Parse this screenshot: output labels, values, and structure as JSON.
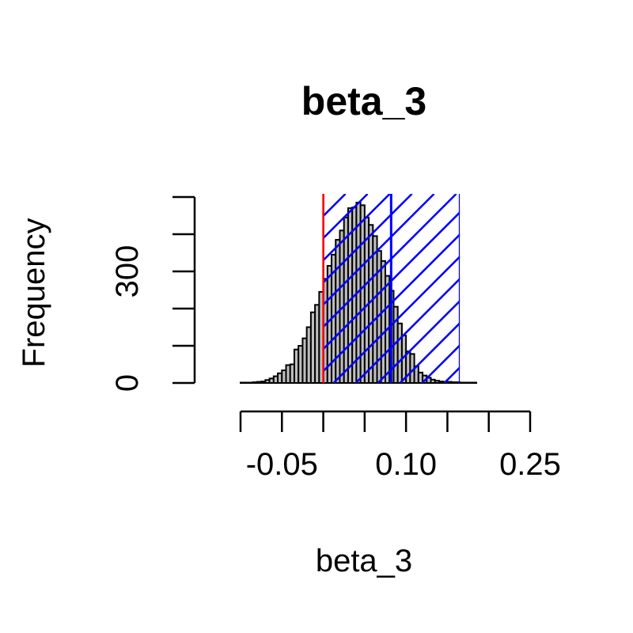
{
  "chart_data": {
    "type": "bar",
    "title": "beta_3",
    "xlabel": "beta_3",
    "ylabel": "Frequency",
    "bin_width": 0.005,
    "bin_start": -0.1,
    "x_ticks": [
      -0.1,
      -0.05,
      0.0,
      0.05,
      0.1,
      0.15,
      0.2,
      0.25
    ],
    "x_tick_labels": [
      "",
      "-0.05",
      "",
      "",
      "0.10",
      "",
      "",
      "0.25"
    ],
    "y_ticks": [
      0,
      100,
      200,
      300,
      400,
      500
    ],
    "y_tick_labels": [
      "0",
      "",
      "",
      "300",
      "",
      ""
    ],
    "xlim": [
      -0.1,
      0.25
    ],
    "ylim": [
      0,
      500
    ],
    "values": [
      1,
      1,
      1,
      2,
      3,
      4,
      8,
      12,
      18,
      26,
      34,
      48,
      50,
      90,
      100,
      120,
      150,
      190,
      210,
      245,
      280,
      315,
      345,
      385,
      410,
      445,
      470,
      472,
      485,
      478,
      445,
      425,
      395,
      355,
      328,
      288,
      248,
      205,
      160,
      128,
      85,
      78,
      45,
      28,
      20,
      14,
      9,
      6,
      4,
      3,
      3,
      2,
      2,
      1,
      1,
      1,
      1
    ],
    "colors": {
      "bar_fill": "#bebebe",
      "bar_stroke": "#000000",
      "interval_hatch": "#0000ff",
      "mean_line": "#0000ff",
      "reference_line": "#ff0000"
    },
    "interval": [
      0.0,
      0.165
    ],
    "mean_line": 0.082,
    "reference_line": 0.0
  }
}
